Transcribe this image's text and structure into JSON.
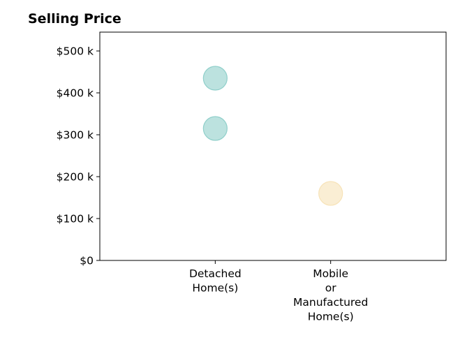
{
  "chart_data": {
    "type": "scatter",
    "title": "Selling Price",
    "xlabel": "",
    "ylabel": "",
    "categories": [
      [
        "Detached",
        "Home(s)"
      ],
      [
        "Mobile",
        "or",
        "Manufactured",
        "Home(s)"
      ]
    ],
    "x_positions": [
      1,
      2
    ],
    "xlim": [
      0,
      3
    ],
    "ylim": [
      0,
      545000
    ],
    "y_ticks": [
      0,
      100000,
      200000,
      300000,
      400000,
      500000
    ],
    "y_tick_labels": [
      "$0",
      "$100 k",
      "$200 k",
      "$300 k",
      "$400 k",
      "$500 k"
    ],
    "grid": false,
    "points": [
      {
        "category": 0,
        "y": 435000,
        "color": "#8fcfca"
      },
      {
        "category": 0,
        "y": 315000,
        "color": "#8fcfca"
      },
      {
        "category": 1,
        "y": 160000,
        "color": "#f7e3b8"
      }
    ]
  }
}
